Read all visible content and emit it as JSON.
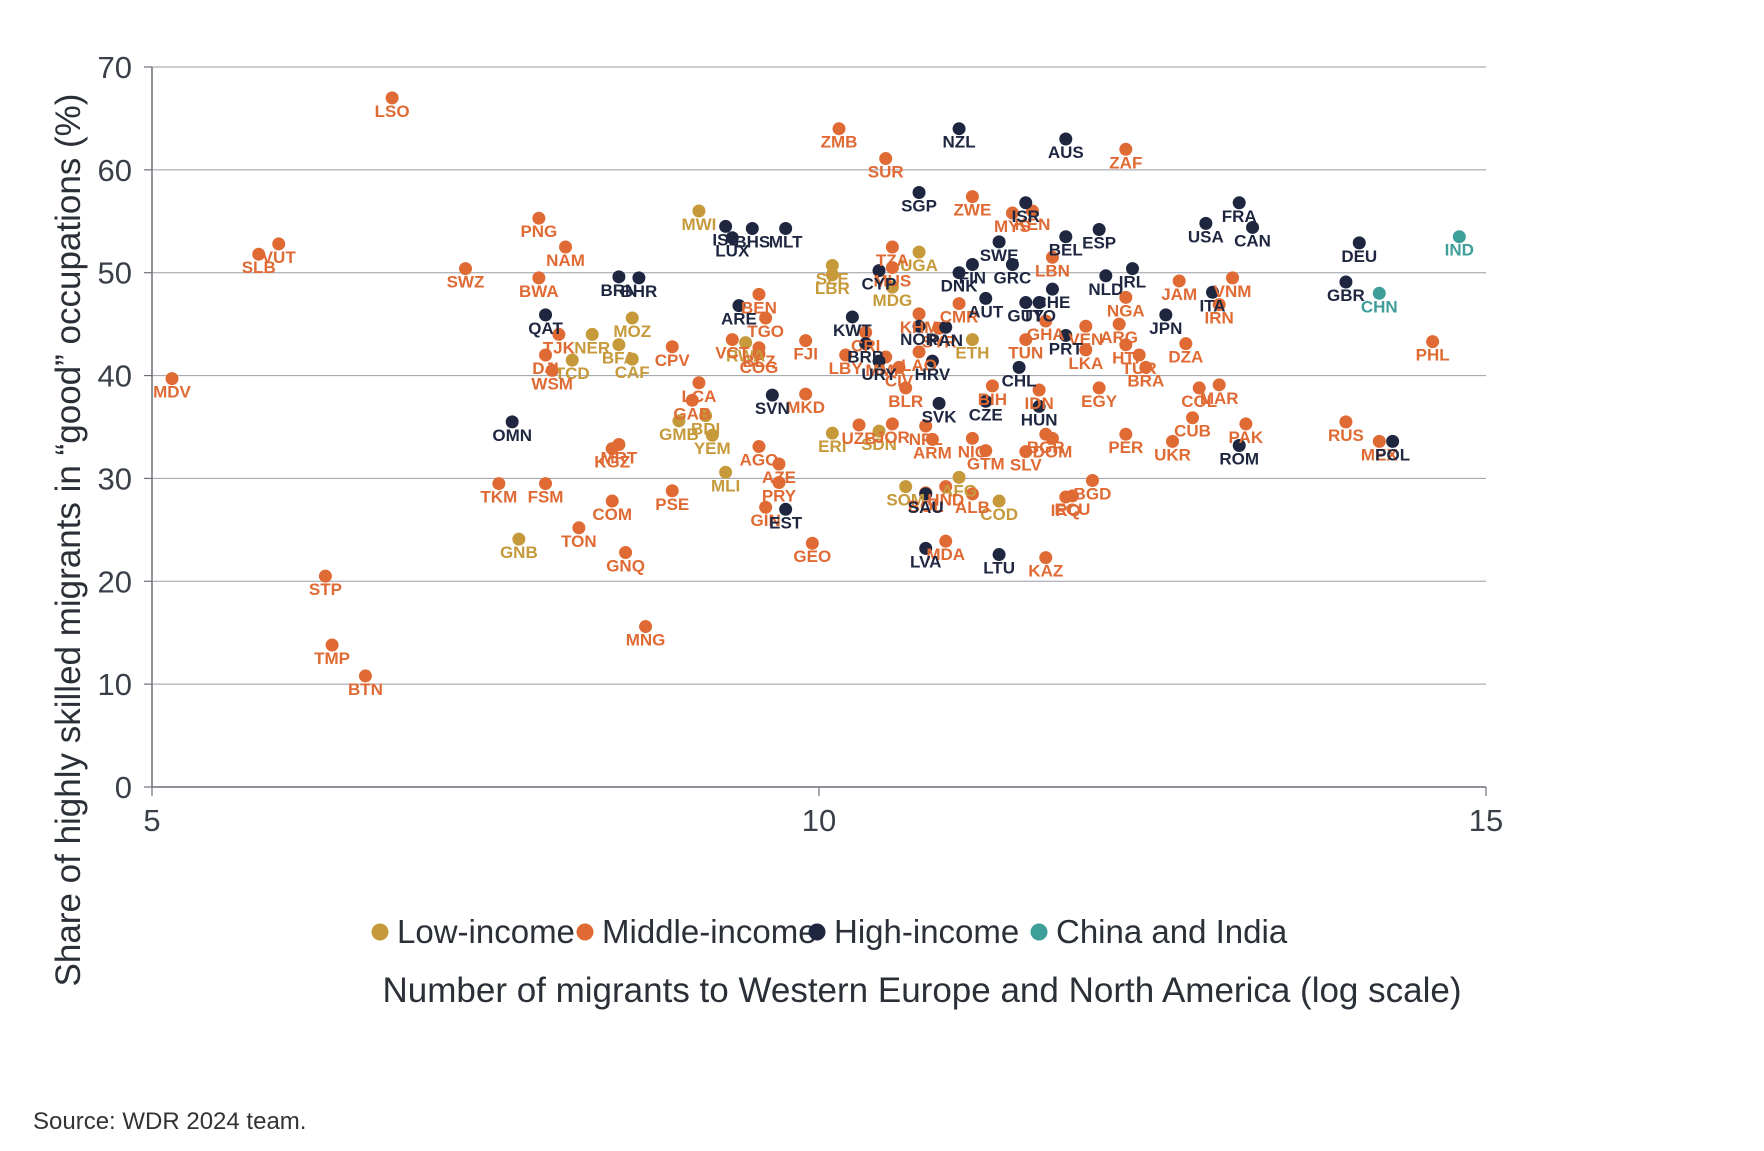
{
  "source": "Source: WDR 2024 team.",
  "colors": {
    "low": "#C69A3B",
    "middle": "#E06A34",
    "high": "#1E2640",
    "china_india": "#3E9E9A"
  },
  "chart_data": {
    "type": "scatter",
    "xlabel": "Number of migrants to Western Europe and North America (log scale)",
    "ylabel": "Share of highly skilled migrants in “good” occupations (%)",
    "xlim": [
      5,
      15
    ],
    "ylim": [
      0,
      70
    ],
    "xticks": [
      5,
      10,
      15
    ],
    "yticks": [
      0,
      10,
      20,
      30,
      40,
      50,
      60,
      70
    ],
    "grid": "horizontal",
    "legend_position": "bottom",
    "series": [
      {
        "name": "Low-income",
        "color": "#C69A3B",
        "points": [
          {
            "label": "MWI",
            "x": 9.1,
            "y": 56
          },
          {
            "label": "UGA",
            "x": 10.75,
            "y": 52
          },
          {
            "label": "SLE",
            "x": 10.1,
            "y": 50.7
          },
          {
            "label": "LBR",
            "x": 10.1,
            "y": 49.8
          },
          {
            "label": "MDG",
            "x": 10.55,
            "y": 48.6
          },
          {
            "label": "MOZ",
            "x": 8.6,
            "y": 45.6
          },
          {
            "label": "BFA",
            "x": 8.5,
            "y": 43
          },
          {
            "label": "NER",
            "x": 8.3,
            "y": 44
          },
          {
            "label": "TCD",
            "x": 8.15,
            "y": 41.5
          },
          {
            "label": "CAF",
            "x": 8.6,
            "y": 41.6
          },
          {
            "label": "RWA",
            "x": 9.45,
            "y": 43.2
          },
          {
            "label": "GMB",
            "x": 8.95,
            "y": 35.6
          },
          {
            "label": "BDI",
            "x": 9.15,
            "y": 36.1
          },
          {
            "label": "YEM",
            "x": 9.2,
            "y": 34.2
          },
          {
            "label": "ERI",
            "x": 10.1,
            "y": 34.4
          },
          {
            "label": "SDN",
            "x": 10.45,
            "y": 34.6
          },
          {
            "label": "MLI",
            "x": 9.3,
            "y": 30.6
          },
          {
            "label": "SOM",
            "x": 10.65,
            "y": 29.2
          },
          {
            "label": "AFG",
            "x": 11.05,
            "y": 30.1
          },
          {
            "label": "GNB",
            "x": 7.75,
            "y": 24.1
          },
          {
            "label": "COD",
            "x": 11.35,
            "y": 27.8
          },
          {
            "label": "ETH",
            "x": 11.15,
            "y": 43.5
          }
        ]
      },
      {
        "name": "Middle-income",
        "color": "#E06A34",
        "points": [
          {
            "label": "LSO",
            "x": 6.8,
            "y": 67
          },
          {
            "label": "ZMB",
            "x": 10.15,
            "y": 64
          },
          {
            "label": "SUR",
            "x": 10.5,
            "y": 61.1
          },
          {
            "label": "ZAF",
            "x": 12.3,
            "y": 62
          },
          {
            "label": "ZWE",
            "x": 11.15,
            "y": 57.4
          },
          {
            "label": "KEN",
            "x": 11.6,
            "y": 56
          },
          {
            "label": "MYS",
            "x": 11.45,
            "y": 55.8
          },
          {
            "label": "TZA",
            "x": 10.55,
            "y": 52.5
          },
          {
            "label": "MUS",
            "x": 10.55,
            "y": 50.5
          },
          {
            "label": "LBN",
            "x": 11.75,
            "y": 51.5
          },
          {
            "label": "VUT",
            "x": 5.95,
            "y": 52.8
          },
          {
            "label": "SLB",
            "x": 5.8,
            "y": 51.8
          },
          {
            "label": "PNG",
            "x": 7.9,
            "y": 55.3
          },
          {
            "label": "NAM",
            "x": 8.1,
            "y": 52.5
          },
          {
            "label": "SWZ",
            "x": 7.35,
            "y": 50.4
          },
          {
            "label": "BWA",
            "x": 7.9,
            "y": 49.5
          },
          {
            "label": "BEN",
            "x": 9.55,
            "y": 47.9
          },
          {
            "label": "KHM",
            "x": 10.75,
            "y": 46
          },
          {
            "label": "CMR",
            "x": 11.05,
            "y": 47
          },
          {
            "label": "TGO",
            "x": 9.6,
            "y": 45.6
          },
          {
            "label": "JAM",
            "x": 12.7,
            "y": 49.2
          },
          {
            "label": "VNM",
            "x": 13.1,
            "y": 49.5
          },
          {
            "label": "NGA",
            "x": 12.3,
            "y": 47.6
          },
          {
            "label": "IRN",
            "x": 13,
            "y": 46.9
          },
          {
            "label": "TJK",
            "x": 8.05,
            "y": 44
          },
          {
            "label": "VCT",
            "x": 9.35,
            "y": 43.5
          },
          {
            "label": "BLZ",
            "x": 9.55,
            "y": 42.7
          },
          {
            "label": "FJI",
            "x": 9.9,
            "y": 43.4
          },
          {
            "label": "CRI",
            "x": 10.35,
            "y": 44.2
          },
          {
            "label": "GHA",
            "x": 11.7,
            "y": 45.3
          },
          {
            "label": "ARG",
            "x": 12.25,
            "y": 45
          },
          {
            "label": "VEN",
            "x": 12,
            "y": 44.8
          },
          {
            "label": "TUN",
            "x": 11.55,
            "y": 43.5
          },
          {
            "label": "DZA",
            "x": 12.75,
            "y": 43.1
          },
          {
            "label": "TUR",
            "x": 12.4,
            "y": 42
          },
          {
            "label": "HTI",
            "x": 12.3,
            "y": 43
          },
          {
            "label": "DJI",
            "x": 7.95,
            "y": 42
          },
          {
            "label": "WSM",
            "x": 8,
            "y": 40.5
          },
          {
            "label": "CPV",
            "x": 8.9,
            "y": 42.8
          },
          {
            "label": "COG",
            "x": 9.55,
            "y": 42.1
          },
          {
            "label": "LBY",
            "x": 10.2,
            "y": 42
          },
          {
            "label": "MMR",
            "x": 10.5,
            "y": 41.8
          },
          {
            "label": "LAO",
            "x": 10.75,
            "y": 42.3
          },
          {
            "label": "SYR",
            "x": 10.9,
            "y": 44.6
          },
          {
            "label": "LKA",
            "x": 12,
            "y": 42.5
          },
          {
            "label": "CIV",
            "x": 10.6,
            "y": 40.8
          },
          {
            "label": "PHL",
            "x": 14.6,
            "y": 43.3
          },
          {
            "label": "LCA",
            "x": 9.1,
            "y": 39.3
          },
          {
            "label": "BLR",
            "x": 10.65,
            "y": 38.8
          },
          {
            "label": "BIH",
            "x": 11.3,
            "y": 39
          },
          {
            "label": "IDN",
            "x": 11.65,
            "y": 38.6
          },
          {
            "label": "BRA",
            "x": 12.45,
            "y": 40.8
          },
          {
            "label": "MAR",
            "x": 13,
            "y": 39.1
          },
          {
            "label": "EGY",
            "x": 12.1,
            "y": 38.8
          },
          {
            "label": "COL",
            "x": 12.85,
            "y": 38.8
          },
          {
            "label": "GAB",
            "x": 9.05,
            "y": 37.6
          },
          {
            "label": "MKD",
            "x": 9.9,
            "y": 38.2
          },
          {
            "label": "JOR",
            "x": 10.55,
            "y": 35.3
          },
          {
            "label": "NPL",
            "x": 10.8,
            "y": 35.1
          },
          {
            "label": "UZB",
            "x": 10.3,
            "y": 35.2
          },
          {
            "label": "ARM",
            "x": 10.85,
            "y": 33.8
          },
          {
            "label": "NIC",
            "x": 11.15,
            "y": 33.9
          },
          {
            "label": "BGR",
            "x": 11.7,
            "y": 34.3
          },
          {
            "label": "DOM",
            "x": 11.75,
            "y": 33.9
          },
          {
            "label": "SLV",
            "x": 11.55,
            "y": 32.6
          },
          {
            "label": "PER",
            "x": 12.3,
            "y": 34.3
          },
          {
            "label": "UKR",
            "x": 12.65,
            "y": 33.6
          },
          {
            "label": "CUB",
            "x": 12.8,
            "y": 35.9
          },
          {
            "label": "PAK",
            "x": 13.2,
            "y": 35.3
          },
          {
            "label": "RUS",
            "x": 13.95,
            "y": 35.5
          },
          {
            "label": "MEX",
            "x": 14.2,
            "y": 33.6
          },
          {
            "label": "MRT",
            "x": 8.5,
            "y": 33.3
          },
          {
            "label": "KGZ",
            "x": 8.45,
            "y": 32.9
          },
          {
            "label": "AGO",
            "x": 9.55,
            "y": 33.1
          },
          {
            "label": "AZE",
            "x": 9.7,
            "y": 31.4
          },
          {
            "label": "GTM",
            "x": 11.25,
            "y": 32.7
          },
          {
            "label": "ALB",
            "x": 11.15,
            "y": 28.5
          },
          {
            "label": "ECU",
            "x": 11.9,
            "y": 28.3
          },
          {
            "label": "BGD",
            "x": 12.05,
            "y": 29.8
          },
          {
            "label": "IRQ",
            "x": 11.85,
            "y": 28.2
          },
          {
            "label": "HND",
            "x": 10.95,
            "y": 29.2
          },
          {
            "label": "BOL",
            "x": 10.8,
            "y": 28.6
          },
          {
            "label": "PRY",
            "x": 9.7,
            "y": 29.6
          },
          {
            "label": "GIN",
            "x": 9.6,
            "y": 27.2
          },
          {
            "label": "TKM",
            "x": 7.6,
            "y": 29.5
          },
          {
            "label": "FSM",
            "x": 7.95,
            "y": 29.5
          },
          {
            "label": "COM",
            "x": 8.45,
            "y": 27.8
          },
          {
            "label": "PSE",
            "x": 8.9,
            "y": 28.8
          },
          {
            "label": "TON",
            "x": 8.2,
            "y": 25.2
          },
          {
            "label": "GNQ",
            "x": 8.55,
            "y": 22.8
          },
          {
            "label": "GEO",
            "x": 9.95,
            "y": 23.7
          },
          {
            "label": "MDA",
            "x": 10.95,
            "y": 23.9
          },
          {
            "label": "KAZ",
            "x": 11.7,
            "y": 22.3
          },
          {
            "label": "MDV",
            "x": 5.15,
            "y": 39.7
          },
          {
            "label": "STP",
            "x": 6.3,
            "y": 20.5
          },
          {
            "label": "TMP",
            "x": 6.35,
            "y": 13.8
          },
          {
            "label": "BTN",
            "x": 6.6,
            "y": 10.8
          },
          {
            "label": "MNG",
            "x": 8.7,
            "y": 15.6
          }
        ]
      },
      {
        "name": "High-income",
        "color": "#1E2640",
        "points": [
          {
            "label": "NZL",
            "x": 11.05,
            "y": 64
          },
          {
            "label": "AUS",
            "x": 11.85,
            "y": 63
          },
          {
            "label": "FRA",
            "x": 13.15,
            "y": 56.8
          },
          {
            "label": "SGP",
            "x": 10.75,
            "y": 57.8
          },
          {
            "label": "ISR",
            "x": 11.55,
            "y": 56.8
          },
          {
            "label": "BEL",
            "x": 11.85,
            "y": 53.5
          },
          {
            "label": "ESP",
            "x": 12.1,
            "y": 54.2
          },
          {
            "label": "USA",
            "x": 12.9,
            "y": 54.8
          },
          {
            "label": "CAN",
            "x": 13.25,
            "y": 54.4
          },
          {
            "label": "ISL",
            "x": 9.3,
            "y": 54.5
          },
          {
            "label": "BHS",
            "x": 9.5,
            "y": 54.3
          },
          {
            "label": "MLT",
            "x": 9.75,
            "y": 54.3
          },
          {
            "label": "LUX",
            "x": 9.35,
            "y": 53.4
          },
          {
            "label": "SWE",
            "x": 11.35,
            "y": 53
          },
          {
            "label": "DEU",
            "x": 14.05,
            "y": 52.9
          },
          {
            "label": "FIN",
            "x": 11.15,
            "y": 50.8
          },
          {
            "label": "GRC",
            "x": 11.45,
            "y": 50.8
          },
          {
            "label": "NLD",
            "x": 12.15,
            "y": 49.7
          },
          {
            "label": "IRL",
            "x": 12.35,
            "y": 50.4
          },
          {
            "label": "BRN",
            "x": 8.5,
            "y": 49.6
          },
          {
            "label": "BHR",
            "x": 8.65,
            "y": 49.5
          },
          {
            "label": "CYP",
            "x": 10.45,
            "y": 50.2
          },
          {
            "label": "DNK",
            "x": 11.05,
            "y": 50
          },
          {
            "label": "GBR",
            "x": 13.95,
            "y": 49.1
          },
          {
            "label": "ITA",
            "x": 12.95,
            "y": 48.1
          },
          {
            "label": "AUT",
            "x": 11.25,
            "y": 47.5
          },
          {
            "label": "CHE",
            "x": 11.75,
            "y": 48.4
          },
          {
            "label": "TTO",
            "x": 11.65,
            "y": 47.1
          },
          {
            "label": "GUY",
            "x": 11.55,
            "y": 47.1
          },
          {
            "label": "QAT",
            "x": 7.95,
            "y": 45.9
          },
          {
            "label": "ARE",
            "x": 9.4,
            "y": 46.8
          },
          {
            "label": "KWT",
            "x": 10.25,
            "y": 45.7
          },
          {
            "label": "NOR",
            "x": 10.75,
            "y": 44.8
          },
          {
            "label": "JPN",
            "x": 12.6,
            "y": 45.9
          },
          {
            "label": "PAN",
            "x": 10.95,
            "y": 44.7
          },
          {
            "label": "BRB",
            "x": 10.35,
            "y": 43.1
          },
          {
            "label": "PRT",
            "x": 11.85,
            "y": 43.9
          },
          {
            "label": "URY",
            "x": 10.45,
            "y": 41.4
          },
          {
            "label": "HRV",
            "x": 10.85,
            "y": 41.4
          },
          {
            "label": "CHL",
            "x": 11.5,
            "y": 40.8
          },
          {
            "label": "SVN",
            "x": 9.65,
            "y": 38.1
          },
          {
            "label": "SVK",
            "x": 10.9,
            "y": 37.3
          },
          {
            "label": "CZE",
            "x": 11.25,
            "y": 37.5
          },
          {
            "label": "HUN",
            "x": 11.65,
            "y": 37
          },
          {
            "label": "OMN",
            "x": 7.7,
            "y": 35.5
          },
          {
            "label": "ROM",
            "x": 13.15,
            "y": 33.2
          },
          {
            "label": "POL",
            "x": 14.3,
            "y": 33.6
          },
          {
            "label": "SAU",
            "x": 10.8,
            "y": 28.5
          },
          {
            "label": "EST",
            "x": 9.75,
            "y": 27
          },
          {
            "label": "LVA",
            "x": 10.8,
            "y": 23.2
          },
          {
            "label": "LTU",
            "x": 11.35,
            "y": 22.6
          }
        ]
      },
      {
        "name": "China and India",
        "color": "#3E9E9A",
        "points": [
          {
            "label": "IND",
            "x": 14.8,
            "y": 53.5
          },
          {
            "label": "CHN",
            "x": 14.2,
            "y": 48
          }
        ]
      }
    ]
  }
}
